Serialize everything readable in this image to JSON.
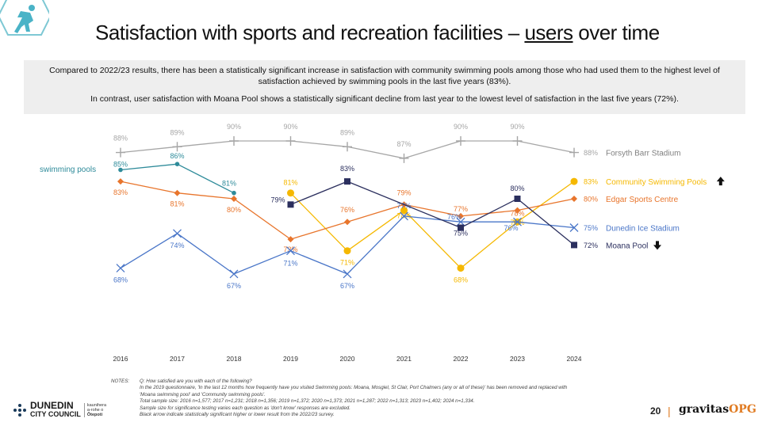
{
  "title_pre": "Satisfaction with sports and recreation facilities – ",
  "title_underlined": "users",
  "title_post": " over time",
  "summary": {
    "para1": "Compared to 2022/23 results, there has been a statistically significant increase in satisfaction with community swimming pools among those who had used them to the highest level of satisfaction achieved by swimming pools in the last five years (83%).",
    "para2": "In contrast, user satisfaction with Moana Pool shows a statistically significant decline from last year to the lowest level of satisfaction in the last five years (72%)."
  },
  "colors": {
    "forsyth": "#a6a6a6",
    "swimming": "#2e8b9a",
    "community": "#f5b800",
    "edgar": "#e8752c",
    "dunedin_ice": "#4a76c8",
    "moana": "#2b2f5e"
  },
  "chart_data": {
    "type": "line",
    "x": [
      "2016",
      "2017",
      "2018",
      "2019",
      "2020",
      "2021",
      "2022",
      "2023",
      "2024"
    ],
    "y_unit": "%",
    "series": [
      {
        "key": "forsyth",
        "name": "Forsyth Barr Stadium",
        "marker": "plus",
        "values": [
          88,
          89,
          90,
          90,
          89,
          87,
          90,
          90,
          88
        ],
        "labels": [
          "88%",
          "89%",
          "90%",
          "90%",
          "89%",
          "87%",
          "90%",
          "90%",
          "88%"
        ]
      },
      {
        "key": "swimming",
        "name": "swimming pools",
        "marker": "circle",
        "values": [
          85,
          86,
          81,
          null,
          null,
          null,
          null,
          null,
          null
        ],
        "labels": [
          "85%",
          "86%",
          "81%",
          null,
          null,
          null,
          null,
          null,
          null
        ]
      },
      {
        "key": "community",
        "name": "Community Swimming Pools",
        "marker": "circle",
        "arrow": "up",
        "values": [
          null,
          null,
          null,
          81,
          71,
          78,
          68,
          76,
          83
        ],
        "labels": [
          null,
          null,
          null,
          "81%",
          "71%",
          "78%",
          "68%",
          "76%",
          "83%"
        ]
      },
      {
        "key": "edgar",
        "name": "Edgar Sports Centre",
        "marker": "diamond",
        "values": [
          83,
          81,
          80,
          73,
          76,
          79,
          77,
          78,
          80
        ],
        "labels": [
          "83%",
          "81%",
          "80%",
          "73%",
          "76%",
          "79%",
          "77%",
          "78%",
          "80%"
        ]
      },
      {
        "key": "dunedin_ice",
        "name": "Dunedin Ice Stadium",
        "marker": "x",
        "values": [
          68,
          74,
          67,
          71,
          67,
          77,
          76,
          76,
          75
        ],
        "labels": [
          "68%",
          "74%",
          "67%",
          "71%",
          "67%",
          "77%",
          "76%",
          "76%",
          "75%"
        ]
      },
      {
        "key": "moana",
        "name": "Moana Pool",
        "marker": "square",
        "arrow": "down",
        "values": [
          null,
          null,
          null,
          79,
          83,
          null,
          75,
          80,
          72
        ],
        "labels": [
          null,
          null,
          null,
          "79%",
          "83%",
          null,
          "75%",
          "80%",
          "72%"
        ]
      }
    ]
  },
  "notes": {
    "label": "NOTES:",
    "lines": [
      "Q: How satisfied are you with each of the following?",
      "In the 2019 questionnaire, 'In the last 12 months how frequently have you visited Swimming pools: Moana, Mosgiel, St Clair, Port Chalmers (any or all of these)' has been removed and replaced with",
      "'Moana swimming pool' and 'Community swimming pools'.",
      "Total sample size: 2016 n=1,577; 2017 n=1,231; 2018 n=1,356; 2019 n=1,372; 2020 n=1,373; 2021 n=1,287; 2022 n=1,313; 2023 n=1,402; 2024 n=1,334.",
      "Sample size for significance testing varies each question as 'don't know' responses are excluded.",
      "Black arrow indicate statistically significant higher or lower result from the 2022/23 survey."
    ]
  },
  "footer": {
    "org_line1": "DUNEDIN",
    "org_line2": "CITY COUNCIL",
    "org_maori1": "kaunihera",
    "org_maori2": "a-rohe o",
    "org_maori3": "Ōtepoti",
    "page": "20",
    "sep": "|",
    "brand_main": "gravitas",
    "brand_accent": "OPG"
  }
}
